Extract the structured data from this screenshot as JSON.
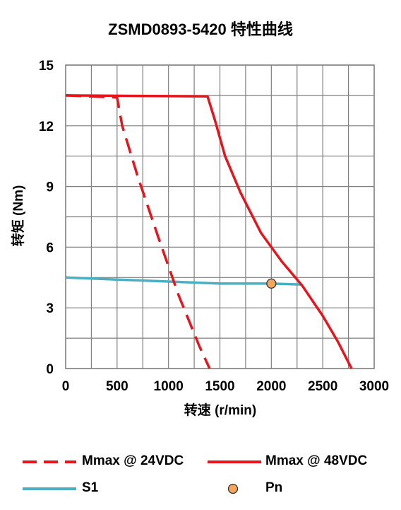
{
  "chart_data": {
    "type": "line",
    "title": "ZSMD0893-5420 特性曲线",
    "xlabel": "转速 (r/min)",
    "ylabel": "转矩 (Nm)",
    "xlim": [
      0,
      3000
    ],
    "ylim": [
      0,
      15
    ],
    "xticks": [
      0,
      500,
      1000,
      1500,
      2000,
      2500,
      3000
    ],
    "yticks": [
      0,
      3,
      6,
      9,
      12,
      15
    ],
    "grid": true,
    "legend_position": "bottom",
    "series": [
      {
        "name": "Mmax @ 24VDC",
        "style": "dashed",
        "color": "#e8141b",
        "x": [
          0,
          500,
          550,
          700,
          900,
          1100,
          1300,
          1400
        ],
        "y": [
          13.5,
          13.4,
          12.0,
          9.5,
          6.5,
          3.6,
          1.1,
          0
        ]
      },
      {
        "name": "Mmax @ 48VDC",
        "style": "solid",
        "color": "#e8141b",
        "x": [
          0,
          1380,
          1450,
          1550,
          1700,
          1900,
          2100,
          2300,
          2500,
          2650,
          2750,
          2780
        ],
        "y": [
          13.5,
          13.45,
          12.3,
          10.5,
          8.7,
          6.7,
          5.3,
          4.1,
          2.6,
          1.3,
          0.3,
          0
        ]
      },
      {
        "name": "S1",
        "style": "solid",
        "color": "#4ab0c1",
        "x": [
          0,
          500,
          1000,
          1500,
          2000,
          2300
        ],
        "y": [
          4.5,
          4.4,
          4.3,
          4.2,
          4.2,
          4.15
        ]
      },
      {
        "name": "Pn",
        "style": "point",
        "color": "#f5a55c",
        "x": [
          2000
        ],
        "y": [
          4.2
        ]
      }
    ]
  }
}
